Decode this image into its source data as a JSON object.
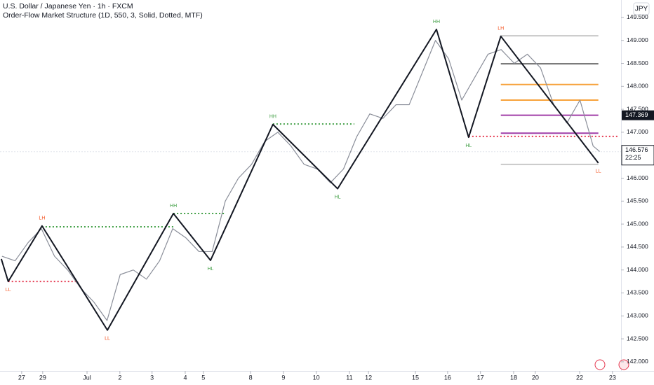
{
  "chart_data": {
    "type": "line",
    "title": "U.S. Dollar / Japanese Yen · 1h · FXCM",
    "subtitle": "Order-Flow Market Structure (1D, 550, 3, Solid, Dotted, MTF)",
    "currency": "JPY",
    "xlim": [
      -0.66,
      18.25
    ],
    "xticks": [
      {
        "value": 0,
        "label": "27"
      },
      {
        "value": 0.64,
        "label": "29"
      },
      {
        "value": 1.99,
        "label": "Jul"
      },
      {
        "value": 2.99,
        "label": "2"
      },
      {
        "value": 3.97,
        "label": "3"
      },
      {
        "value": 4.98,
        "label": "4"
      },
      {
        "value": 5.53,
        "label": "5"
      },
      {
        "value": 6.97,
        "label": "8"
      },
      {
        "value": 7.97,
        "label": "9"
      },
      {
        "value": 8.97,
        "label": "10"
      },
      {
        "value": 9.98,
        "label": "11"
      },
      {
        "value": 10.56,
        "label": "12"
      },
      {
        "value": 11.99,
        "label": "15"
      },
      {
        "value": 12.97,
        "label": "16"
      },
      {
        "value": 13.97,
        "label": "17"
      },
      {
        "value": 14.98,
        "label": "18"
      },
      {
        "value": 15.64,
        "label": "20"
      },
      {
        "value": 16.99,
        "label": "22"
      },
      {
        "value": 17.99,
        "label": "23"
      }
    ],
    "ylim": [
      141.8,
      149.88
    ],
    "yticks": [
      {
        "value": 142,
        "label": "142.000"
      },
      {
        "value": 142.5,
        "label": "142.500"
      },
      {
        "value": 143,
        "label": "143.000"
      },
      {
        "value": 143.5,
        "label": "143.500"
      },
      {
        "value": 144,
        "label": "144.000"
      },
      {
        "value": 144.5,
        "label": "144.500"
      },
      {
        "value": 145,
        "label": "145.000"
      },
      {
        "value": 145.5,
        "label": "145.500"
      },
      {
        "value": 146,
        "label": "146.000"
      },
      {
        "value": 146.5,
        "label": "146.500"
      },
      {
        "value": 147,
        "label": "147.000"
      },
      {
        "value": 147.5,
        "label": "147.500"
      },
      {
        "value": 148,
        "label": "148.000"
      },
      {
        "value": 148.5,
        "label": "148.500"
      },
      {
        "value": 149,
        "label": "149.000"
      },
      {
        "value": 149.5,
        "label": "149.500"
      }
    ],
    "series": [
      {
        "color": "#131722",
        "x": [
          -0.62,
          -0.41,
          0.62,
          2.61,
          4.62,
          5.75,
          7.65,
          9.62,
          12.63,
          13.61,
          14.59,
          17.56
        ],
        "values": [
          144.24,
          143.75,
          144.96,
          142.69,
          145.23,
          144.21,
          147.17,
          145.77,
          149.24,
          146.89,
          149.09,
          146.33
        ],
        "labels": [
          null,
          "LL",
          "LH",
          "LL",
          "HH",
          "HL",
          "HH",
          "HL",
          "HH",
          "HL",
          "LH",
          "LL"
        ]
      },
      {
        "color": "#8a8e99",
        "x": [
          -0.6,
          -0.2,
          0.2,
          0.6,
          1.0,
          1.4,
          1.8,
          2.2,
          2.6,
          3.0,
          3.4,
          3.8,
          4.2,
          4.6,
          5.0,
          5.4,
          5.8,
          6.2,
          6.6,
          7.0,
          7.4,
          7.8,
          8.2,
          8.6,
          9.0,
          9.4,
          9.8,
          10.2,
          10.6,
          11.0,
          11.4,
          11.8,
          12.2,
          12.6,
          13.0,
          13.4,
          13.8,
          14.2,
          14.6,
          15.0,
          15.4,
          15.8,
          16.2,
          16.6,
          17.0,
          17.4,
          17.6
        ],
        "values": [
          144.3,
          144.2,
          144.6,
          144.9,
          144.3,
          144.0,
          143.6,
          143.3,
          142.9,
          143.9,
          144.0,
          143.8,
          144.2,
          144.9,
          144.7,
          144.4,
          144.4,
          145.5,
          146.0,
          146.3,
          146.8,
          147.0,
          146.7,
          146.3,
          146.2,
          145.9,
          146.2,
          146.9,
          147.4,
          147.3,
          147.6,
          147.6,
          148.3,
          149.0,
          148.6,
          147.7,
          148.2,
          148.7,
          148.8,
          148.5,
          148.7,
          148.4,
          147.6,
          147.2,
          147.7,
          146.7,
          146.58
        ]
      }
    ],
    "label_colors": {
      "HH": "#43a047",
      "HL": "#43a047",
      "LH": "#f4511e",
      "LL": "#f4511e"
    },
    "levels": [
      {
        "value": 143.75,
        "x": [
          -0.41,
          1.73
        ],
        "color": "#e53950",
        "style": "dotted"
      },
      {
        "value": 144.94,
        "x": [
          0.62,
          4.62
        ],
        "color": "#43a047",
        "style": "dotted"
      },
      {
        "value": 145.23,
        "x": [
          4.62,
          6.16
        ],
        "color": "#43a047",
        "style": "dotted"
      },
      {
        "value": 147.18,
        "x": [
          7.65,
          10.13
        ],
        "color": "#43a047",
        "style": "dotted"
      },
      {
        "value": 146.91,
        "x": [
          13.61,
          18.14
        ],
        "color": "#e53950",
        "style": "dotted"
      },
      {
        "value": 149.1,
        "x": [
          14.59,
          17.56
        ],
        "color": "#c8c8c8",
        "style": "solid"
      },
      {
        "value": 148.49,
        "x": [
          14.59,
          17.56
        ],
        "color": "#6d6d6d",
        "style": "solid"
      },
      {
        "value": 148.04,
        "x": [
          14.59,
          17.56
        ],
        "color": "#f7a23b",
        "style": "solid"
      },
      {
        "value": 147.7,
        "x": [
          14.59,
          17.56
        ],
        "color": "#f7a23b",
        "style": "solid"
      },
      {
        "value": 147.37,
        "x": [
          14.59,
          17.56
        ],
        "color": "#a03ea8",
        "style": "solid"
      },
      {
        "value": 146.98,
        "x": [
          14.59,
          17.56
        ],
        "color": "#a03ea8",
        "style": "solid"
      },
      {
        "value": 146.3,
        "x": [
          14.59,
          17.56
        ],
        "color": "#c8c8c8",
        "style": "solid"
      }
    ],
    "last_price": 146.576,
    "countdown": "22:25",
    "marked_price": 147.369
  }
}
